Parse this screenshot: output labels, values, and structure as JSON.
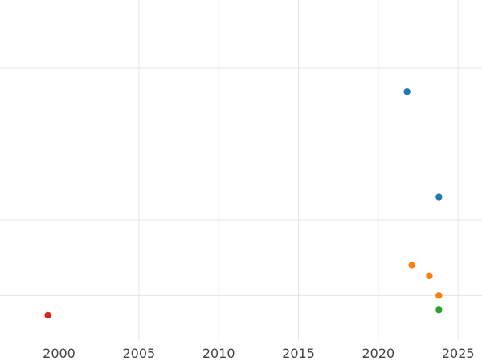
{
  "chart_data": {
    "type": "scatter",
    "title": "",
    "xlabel": "",
    "ylabel": "",
    "xlim": [
      1996.3,
      2026.5
    ],
    "ylim": [
      0.0,
      4.5
    ],
    "x_ticks": [
      2000,
      2005,
      2010,
      2015,
      2020,
      2025
    ],
    "x_tick_labels": [
      "2000",
      "2005",
      "2010",
      "2015",
      "2020",
      "2025"
    ],
    "y_ticks": [
      0.6,
      1.6,
      2.6,
      3.6
    ],
    "y_tick_labels": [
      "",
      "",
      "",
      ""
    ],
    "grid": true,
    "legend": "none",
    "points": [
      {
        "x": 2021.8,
        "y": 3.29,
        "color": "#1f77b4"
      },
      {
        "x": 2023.8,
        "y": 1.9,
        "color": "#1f77b4"
      },
      {
        "x": 2022.1,
        "y": 1.0,
        "color": "#ff7f0e"
      },
      {
        "x": 2023.2,
        "y": 0.86,
        "color": "#ff7f0e"
      },
      {
        "x": 2023.8,
        "y": 0.6,
        "color": "#ff7f0e"
      },
      {
        "x": 2023.8,
        "y": 0.41,
        "color": "#2ca02c"
      },
      {
        "x": 1999.3,
        "y": 0.34,
        "color": "#d62728"
      }
    ]
  }
}
